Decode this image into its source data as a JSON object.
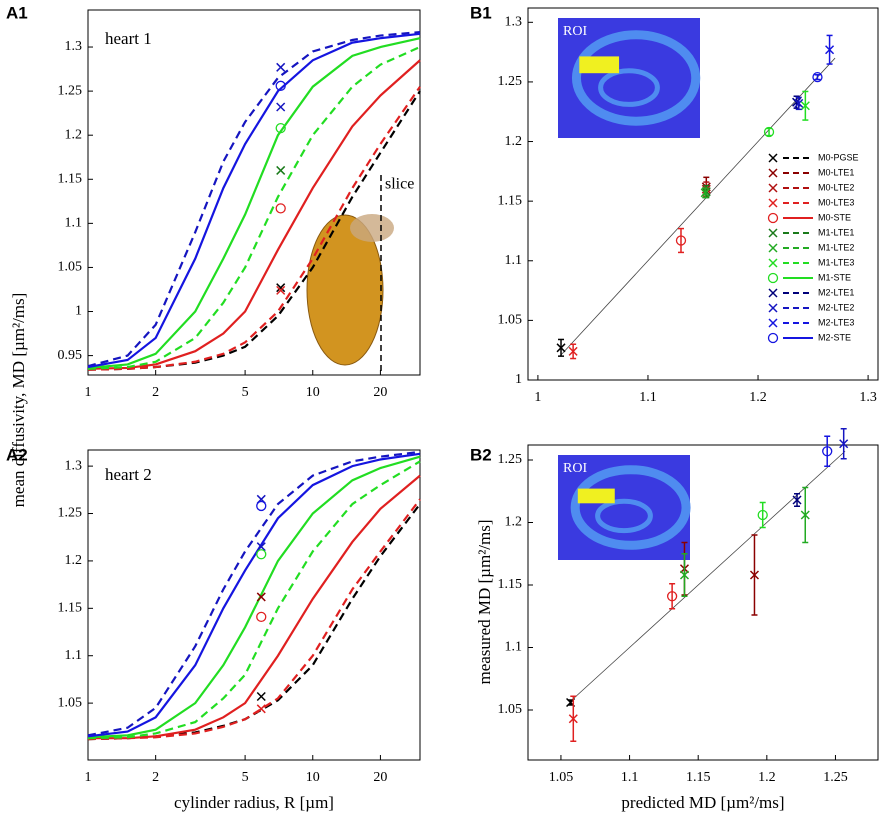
{
  "chart_data": [
    {
      "type": "line",
      "panel": "A1",
      "annotation": "heart 1",
      "slice_label": "slice",
      "xscale": "log",
      "xlim": [
        1,
        30
      ],
      "xticks": [
        1,
        2,
        5,
        10,
        20
      ],
      "ylim": [
        0.928,
        1.342
      ],
      "yticks": [
        0.95,
        1,
        1.05,
        1.1,
        1.15,
        1.2,
        1.25,
        1.3
      ],
      "x": [
        1,
        1.5,
        2,
        3,
        4,
        5,
        7,
        10,
        15,
        20,
        30
      ],
      "series": [
        {
          "color": "#000000",
          "dash": true,
          "values": [
            0.934,
            0.935,
            0.937,
            0.942,
            0.95,
            0.96,
            0.995,
            1.05,
            1.13,
            1.18,
            1.25
          ]
        },
        {
          "color": "#e02020",
          "dash": true,
          "values": [
            0.934,
            0.935,
            0.937,
            0.943,
            0.952,
            0.965,
            1.0,
            1.06,
            1.14,
            1.19,
            1.255
          ]
        },
        {
          "color": "#e02020",
          "dash": false,
          "values": [
            0.935,
            0.936,
            0.94,
            0.955,
            0.975,
            1.0,
            1.07,
            1.14,
            1.21,
            1.245,
            1.285
          ]
        },
        {
          "color": "#22dd22",
          "dash": true,
          "values": [
            0.935,
            0.937,
            0.943,
            0.97,
            1.01,
            1.05,
            1.13,
            1.2,
            1.255,
            1.28,
            1.3
          ]
        },
        {
          "color": "#22dd22",
          "dash": false,
          "values": [
            0.936,
            0.94,
            0.952,
            1.0,
            1.06,
            1.11,
            1.2,
            1.255,
            1.29,
            1.3,
            1.31
          ]
        },
        {
          "color": "#1515c0",
          "dash": true,
          "values": [
            0.938,
            0.95,
            0.985,
            1.09,
            1.17,
            1.215,
            1.265,
            1.295,
            1.308,
            1.313,
            1.317
          ]
        },
        {
          "color": "#1515e0",
          "dash": false,
          "values": [
            0.937,
            0.945,
            0.97,
            1.06,
            1.14,
            1.19,
            1.25,
            1.285,
            1.305,
            1.31,
            1.315
          ]
        }
      ],
      "markers": [
        {
          "x": 7.2,
          "value": 1.277,
          "color": "#1515c0",
          "marker": "x"
        },
        {
          "x": 7.2,
          "value": 1.256,
          "color": "#1515e0",
          "marker": "o"
        },
        {
          "x": 7.2,
          "value": 1.232,
          "color": "#1515c0",
          "marker": "x"
        },
        {
          "x": 7.2,
          "value": 1.208,
          "color": "#22dd22",
          "marker": "o"
        },
        {
          "x": 7.2,
          "value": 1.16,
          "color": "#1a7a1a",
          "marker": "x"
        },
        {
          "x": 7.2,
          "value": 1.117,
          "color": "#e02020",
          "marker": "o"
        },
        {
          "x": 7.2,
          "value": 1.027,
          "color": "#000000",
          "marker": "x"
        },
        {
          "x": 7.2,
          "value": 1.024,
          "color": "#e02020",
          "marker": "x"
        }
      ]
    },
    {
      "type": "line",
      "panel": "A2",
      "annotation": "heart 2",
      "xscale": "log",
      "xlabel": "cylinder radius, R [µm]",
      "ylabel": "mean diffusivity, MD [µm²/ms]",
      "xlim": [
        1,
        30
      ],
      "xticks": [
        1,
        2,
        5,
        10,
        20
      ],
      "ylim": [
        0.99,
        1.317
      ],
      "yticks": [
        1.05,
        1.1,
        1.15,
        1.2,
        1.25,
        1.3
      ],
      "x": [
        1,
        1.5,
        2,
        3,
        4,
        5,
        7,
        10,
        15,
        20,
        30
      ],
      "series": [
        {
          "color": "#000000",
          "dash": true,
          "values": [
            1.012,
            1.013,
            1.015,
            1.019,
            1.026,
            1.033,
            1.053,
            1.09,
            1.16,
            1.205,
            1.26
          ]
        },
        {
          "color": "#e02020",
          "dash": true,
          "values": [
            1.012,
            1.013,
            1.014,
            1.018,
            1.025,
            1.033,
            1.055,
            1.1,
            1.17,
            1.21,
            1.265
          ]
        },
        {
          "color": "#e02020",
          "dash": false,
          "values": [
            1.013,
            1.013,
            1.015,
            1.022,
            1.035,
            1.05,
            1.1,
            1.16,
            1.22,
            1.255,
            1.29
          ]
        },
        {
          "color": "#22dd22",
          "dash": true,
          "values": [
            1.013,
            1.014,
            1.018,
            1.03,
            1.055,
            1.08,
            1.15,
            1.21,
            1.26,
            1.28,
            1.305
          ]
        },
        {
          "color": "#22dd22",
          "dash": false,
          "values": [
            1.014,
            1.016,
            1.022,
            1.05,
            1.09,
            1.13,
            1.2,
            1.25,
            1.285,
            1.298,
            1.31
          ]
        },
        {
          "color": "#1515c0",
          "dash": true,
          "values": [
            1.016,
            1.024,
            1.045,
            1.11,
            1.17,
            1.21,
            1.26,
            1.29,
            1.305,
            1.31,
            1.315
          ]
        },
        {
          "color": "#1515e0",
          "dash": false,
          "values": [
            1.015,
            1.02,
            1.035,
            1.09,
            1.15,
            1.19,
            1.245,
            1.28,
            1.3,
            1.307,
            1.313
          ]
        }
      ],
      "markers": [
        {
          "x": 5.9,
          "value": 1.265,
          "color": "#1515c0",
          "marker": "x"
        },
        {
          "x": 5.9,
          "value": 1.258,
          "color": "#1515e0",
          "marker": "o"
        },
        {
          "x": 5.9,
          "value": 1.215,
          "color": "#1515c0",
          "marker": "x"
        },
        {
          "x": 5.9,
          "value": 1.207,
          "color": "#22dd22",
          "marker": "o"
        },
        {
          "x": 5.9,
          "value": 1.162,
          "color": "#8b0000",
          "marker": "x"
        },
        {
          "x": 5.9,
          "value": 1.141,
          "color": "#e02020",
          "marker": "o"
        },
        {
          "x": 5.9,
          "value": 1.057,
          "color": "#000000",
          "marker": "x"
        },
        {
          "x": 5.9,
          "value": 1.044,
          "color": "#e02020",
          "marker": "x"
        }
      ]
    },
    {
      "type": "scatter",
      "panel": "B1",
      "inset_label": "ROI",
      "xlim": [
        0.991,
        1.309
      ],
      "xticks": [
        1,
        1.1,
        1.2,
        1.3
      ],
      "ylim": [
        1,
        1.312
      ],
      "yticks": [
        1,
        1.05,
        1.1,
        1.15,
        1.2,
        1.25,
        1.3
      ],
      "identity_line": {
        "x": [
          1.02,
          1.27
        ],
        "values": [
          1.02,
          1.27
        ]
      },
      "series": [
        {
          "name": "M0-PGSE",
          "color": "#000000",
          "marker": "x",
          "dash": true,
          "x": [
            1.021
          ],
          "values": [
            1.027
          ],
          "errors": [
            0.007
          ]
        },
        {
          "name": "M0-LTE1",
          "color": "#8b0000",
          "marker": "x",
          "dash": true,
          "x": [
            1.153
          ],
          "values": [
            1.162
          ],
          "errors": [
            0.008
          ]
        },
        {
          "name": "M0-LTE2",
          "color": "#b01010",
          "marker": "x",
          "dash": true,
          "x": [
            1.153
          ],
          "values": [
            1.16
          ],
          "errors": [
            0.006
          ]
        },
        {
          "name": "M0-LTE3",
          "color": "#e02020",
          "marker": "x",
          "dash": true,
          "x": [
            1.032
          ],
          "values": [
            1.024
          ],
          "errors": [
            0.006
          ]
        },
        {
          "name": "M0-STE",
          "color": "#e02020",
          "marker": "o",
          "dash": false,
          "x": [
            1.13
          ],
          "values": [
            1.117
          ],
          "errors": [
            0.01
          ]
        },
        {
          "name": "M1-LTE1",
          "color": "#1a7a1a",
          "marker": "x",
          "dash": true,
          "x": [
            1.153
          ],
          "values": [
            1.158
          ],
          "errors": [
            0.005
          ]
        },
        {
          "name": "M1-LTE2",
          "color": "#22aa22",
          "marker": "x",
          "dash": true,
          "x": [
            1.152
          ],
          "values": [
            1.157
          ],
          "errors": [
            0.004
          ]
        },
        {
          "name": "M1-LTE3",
          "color": "#22dd22",
          "marker": "x",
          "dash": true,
          "x": [
            1.243
          ],
          "values": [
            1.23
          ],
          "errors": [
            0.012
          ]
        },
        {
          "name": "M1-STE",
          "color": "#22dd22",
          "marker": "o",
          "dash": false,
          "x": [
            1.21
          ],
          "values": [
            1.208
          ],
          "errors": [
            0.003
          ]
        },
        {
          "name": "M2-LTE1",
          "color": "#00007a",
          "marker": "x",
          "dash": true,
          "x": [
            1.235
          ],
          "values": [
            1.233
          ],
          "errors": [
            0.005
          ]
        },
        {
          "name": "M2-LTE2",
          "color": "#1515c0",
          "marker": "x",
          "dash": true,
          "x": [
            1.237
          ],
          "values": [
            1.232
          ],
          "errors": [
            0.005
          ]
        },
        {
          "name": "M2-LTE3",
          "color": "#1515e0",
          "marker": "x",
          "dash": true,
          "x": [
            1.265
          ],
          "values": [
            1.277
          ],
          "errors": [
            0.012
          ]
        },
        {
          "name": "M2-STE",
          "color": "#1515e0",
          "marker": "o",
          "dash": false,
          "x": [
            1.254
          ],
          "values": [
            1.254
          ],
          "errors": [
            0.002
          ]
        }
      ]
    },
    {
      "type": "scatter",
      "panel": "B2",
      "inset_label": "ROI",
      "xlabel": "predicted MD [µm²/ms]",
      "ylabel": "measured MD [µm²/ms]",
      "xlim": [
        1.026,
        1.281
      ],
      "xticks": [
        1.05,
        1.1,
        1.15,
        1.2,
        1.25
      ],
      "ylim": [
        1.01,
        1.262
      ],
      "yticks": [
        1.05,
        1.1,
        1.15,
        1.2,
        1.25
      ],
      "identity_line": {
        "x": [
          1.057,
          1.257
        ],
        "values": [
          1.057,
          1.257
        ]
      },
      "series": [
        {
          "color": "#000000",
          "marker": "x",
          "x": [
            1.057
          ],
          "values": [
            1.056
          ],
          "errors": [
            0.002
          ]
        },
        {
          "color": "#e02020",
          "marker": "x",
          "x": [
            1.059
          ],
          "values": [
            1.043
          ],
          "errors": [
            0.018
          ]
        },
        {
          "color": "#e02020",
          "marker": "o",
          "x": [
            1.131
          ],
          "values": [
            1.141
          ],
          "errors": [
            0.01
          ]
        },
        {
          "color": "#8b0000",
          "marker": "x",
          "x": [
            1.14
          ],
          "values": [
            1.163
          ],
          "errors": [
            0.021
          ]
        },
        {
          "color": "#22aa22",
          "marker": "x",
          "x": [
            1.14
          ],
          "values": [
            1.158
          ],
          "errors": [
            0.017
          ]
        },
        {
          "color": "#8b0000",
          "marker": "x",
          "x": [
            1.191
          ],
          "values": [
            1.158
          ],
          "errors": [
            0.032
          ]
        },
        {
          "color": "#22dd22",
          "marker": "o",
          "x": [
            1.197
          ],
          "values": [
            1.206
          ],
          "errors": [
            0.01
          ]
        },
        {
          "color": "#00007a",
          "marker": "x",
          "x": [
            1.222
          ],
          "values": [
            1.218
          ],
          "errors": [
            0.005
          ]
        },
        {
          "color": "#22aa22",
          "marker": "x",
          "x": [
            1.228
          ],
          "values": [
            1.206
          ],
          "errors": [
            0.022
          ]
        },
        {
          "color": "#1515e0",
          "marker": "o",
          "x": [
            1.244
          ],
          "values": [
            1.257
          ],
          "errors": [
            0.012
          ]
        },
        {
          "color": "#1515c0",
          "marker": "x",
          "x": [
            1.256
          ],
          "values": [
            1.263
          ],
          "errors": [
            0.012
          ]
        }
      ]
    }
  ]
}
